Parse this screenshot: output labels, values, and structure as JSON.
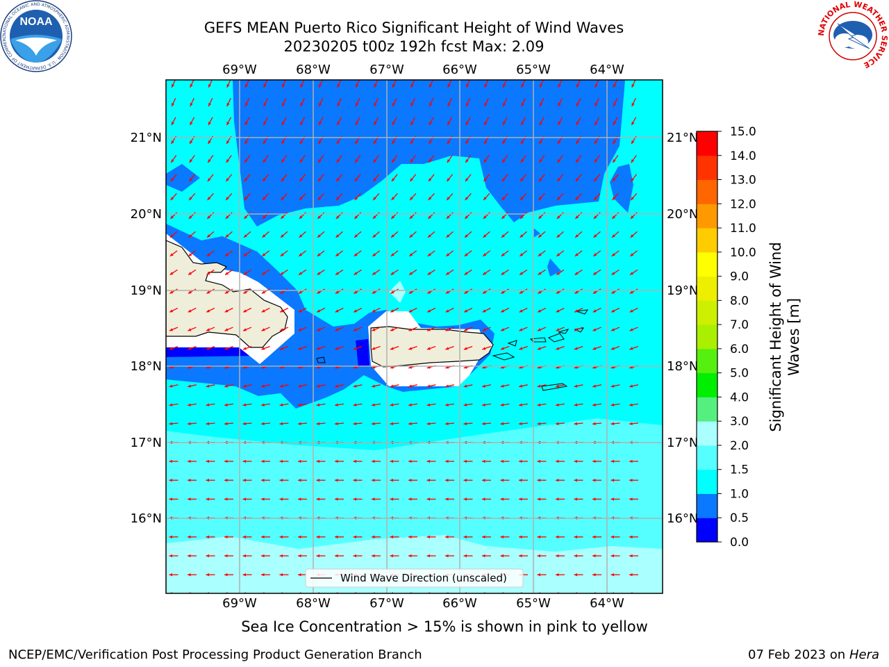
{
  "title": {
    "line1": "GEFS MEAN Puerto Rico Significant Height of Wind Waves",
    "line2": "20230205 t00z 192h fcst   Max: 2.09"
  },
  "map": {
    "lon_ticks": [
      "69°W",
      "68°W",
      "67°W",
      "66°W",
      "65°W",
      "64°W"
    ],
    "lat_ticks": [
      "21°N",
      "20°N",
      "19°N",
      "18°N",
      "17°N",
      "16°N"
    ],
    "legend_label": "Wind Wave Direction (unscaled)",
    "arrow_color": "#ff0000",
    "land_color": "#efeedb"
  },
  "colorbar": {
    "label_line1": "Significant Height of Wind",
    "label_line2": "Waves [m]",
    "tick_labels": [
      "0.0",
      "0.5",
      "1.0",
      "1.5",
      "2.0",
      "3.0",
      "4.0",
      "5.0",
      "6.0",
      "7.0",
      "8.0",
      "9.0",
      "10.0",
      "11.0",
      "12.0",
      "13.0",
      "14.0",
      "15.0"
    ],
    "colors": [
      "#0000ff",
      "#0a78ff",
      "#00ffff",
      "#55ffff",
      "#aaffff",
      "#55ef80",
      "#00ef00",
      "#55ef10",
      "#aaef00",
      "#ccf000",
      "#eeee00",
      "#ffff00",
      "#ffcc00",
      "#ff9900",
      "#ff6600",
      "#ff3300",
      "#ff0000"
    ]
  },
  "footer": {
    "note": "Sea Ice Concentration > 15% is shown in pink to yellow",
    "org": "NCEP/EMC/Verification Post Processing Product Generation Branch",
    "date": "07 Feb 2023 on",
    "host": "Hera"
  },
  "logos": {
    "left_text": "NOAA",
    "left_ring_text": "NATIONAL OCEANIC AND ATMOSPHERIC ADMINISTRATION · U.S. DEPARTMENT OF COMMERCE",
    "right_ring_text": "NATIONAL WEATHER SERVICE"
  }
}
